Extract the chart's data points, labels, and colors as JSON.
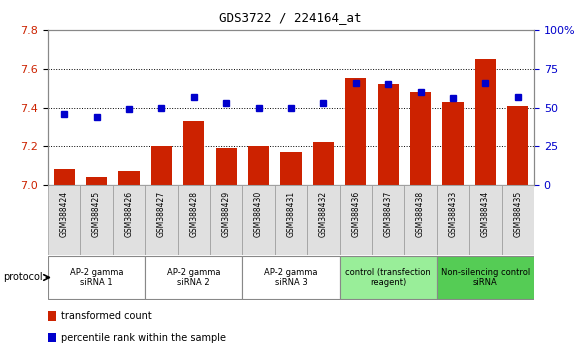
{
  "title": "GDS3722 / 224164_at",
  "samples": [
    "GSM388424",
    "GSM388425",
    "GSM388426",
    "GSM388427",
    "GSM388428",
    "GSM388429",
    "GSM388430",
    "GSM388431",
    "GSM388432",
    "GSM388436",
    "GSM388437",
    "GSM388438",
    "GSM388433",
    "GSM388434",
    "GSM388435"
  ],
  "bar_values": [
    7.08,
    7.04,
    7.07,
    7.2,
    7.33,
    7.19,
    7.2,
    7.17,
    7.22,
    7.55,
    7.52,
    7.48,
    7.43,
    7.65,
    7.41
  ],
  "dot_values": [
    46,
    44,
    49,
    50,
    57,
    53,
    50,
    50,
    53,
    66,
    65,
    60,
    56,
    66,
    57
  ],
  "ylim_left": [
    7.0,
    7.8
  ],
  "ylim_right": [
    0,
    100
  ],
  "yticks_left": [
    7.0,
    7.2,
    7.4,
    7.6,
    7.8
  ],
  "yticks_right": [
    0,
    25,
    50,
    75,
    100
  ],
  "bar_color": "#cc2200",
  "dot_color": "#0000cc",
  "groups": [
    {
      "label": "AP-2 gamma\nsiRNA 1",
      "indices": [
        0,
        1,
        2
      ],
      "color": "#ffffff"
    },
    {
      "label": "AP-2 gamma\nsiRNA 2",
      "indices": [
        3,
        4,
        5
      ],
      "color": "#ffffff"
    },
    {
      "label": "AP-2 gamma\nsiRNA 3",
      "indices": [
        6,
        7,
        8
      ],
      "color": "#ffffff"
    },
    {
      "label": "control (transfection\nreagent)",
      "indices": [
        9,
        10,
        11
      ],
      "color": "#99ee99"
    },
    {
      "label": "Non-silencing control\nsiRNA",
      "indices": [
        12,
        13,
        14
      ],
      "color": "#55cc55"
    }
  ],
  "legend_bar_label": "transformed count",
  "legend_dot_label": "percentile rank within the sample",
  "protocol_label": "protocol",
  "background_color": "#ffffff",
  "bar_color_legend": "#cc2200",
  "dot_color_legend": "#0000cc"
}
